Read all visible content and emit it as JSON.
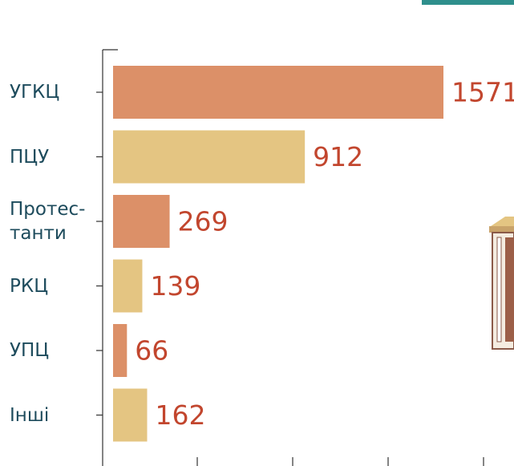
{
  "chart_data": {
    "type": "bar",
    "orientation": "horizontal",
    "categories": [
      "УГКЦ",
      "ПЦУ",
      "Протес-\nтанти",
      "РКЦ",
      "УПЦ",
      "Інші"
    ],
    "values": [
      1571,
      912,
      269,
      139,
      66,
      162
    ],
    "colors": [
      "#dc9068",
      "#e4c582",
      "#dc9068",
      "#e4c582",
      "#dc9068",
      "#e4c582"
    ],
    "xlim": [
      0,
      2000
    ]
  }
}
